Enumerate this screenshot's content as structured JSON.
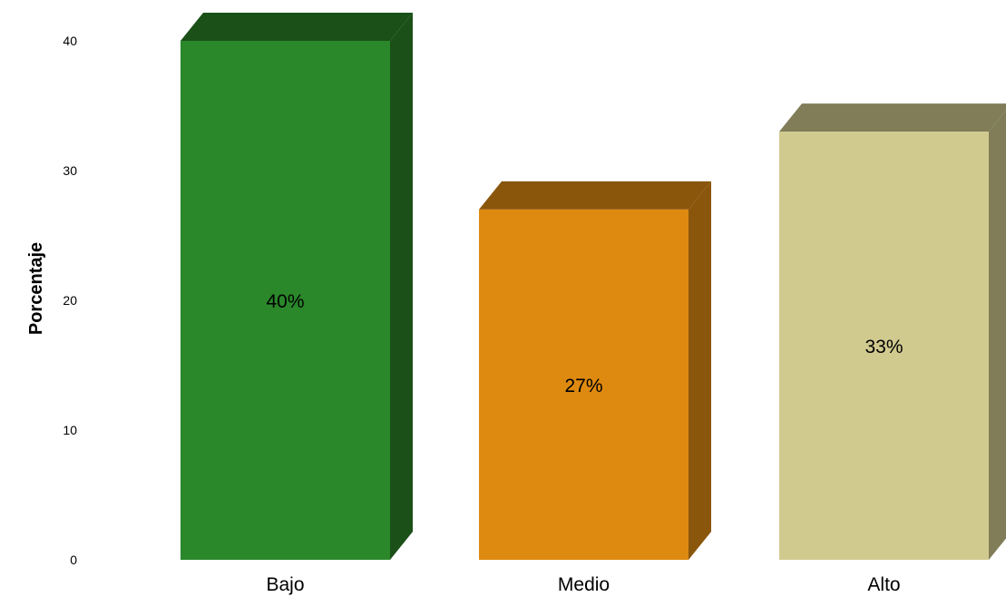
{
  "chart_data": {
    "type": "bar",
    "categories": [
      "Bajo",
      "Medio",
      "Alto"
    ],
    "values": [
      40,
      27,
      33
    ],
    "data_labels": [
      "40%",
      "27%",
      "33%"
    ],
    "ylabel": "Porcentaje",
    "xlabel": "",
    "ylim": [
      0,
      40
    ],
    "yticks": [
      "0",
      "10",
      "20",
      "30",
      "40"
    ],
    "grid": false,
    "style": "3d",
    "colors": {
      "front": [
        "#2a872a",
        "#de8a10",
        "#d1ca8f"
      ],
      "side": [
        "#1b5018",
        "#8a560b",
        "#807d58"
      ],
      "top": [
        "#1b5018",
        "#8a560b",
        "#807d58"
      ]
    }
  }
}
